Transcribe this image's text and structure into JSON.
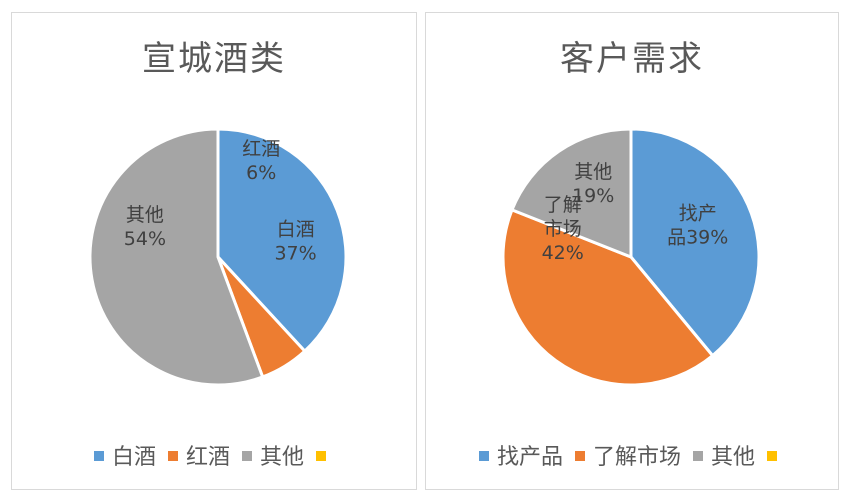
{
  "chart_data": [
    {
      "type": "pie",
      "title": "宣城酒类",
      "slices": [
        {
          "name": "白酒",
          "value": 37,
          "label": [
            "白酒",
            "37%"
          ],
          "color": "#5b9bd5"
        },
        {
          "name": "红酒",
          "value": 6,
          "label": [
            "红酒",
            "6%"
          ],
          "color": "#ed7d31"
        },
        {
          "name": "其他",
          "value": 54,
          "label": [
            "其他",
            "54%"
          ],
          "color": "#a5a5a5"
        }
      ],
      "legend": [
        {
          "name": "白酒",
          "color": "#5b9bd5"
        },
        {
          "name": "红酒",
          "color": "#ed7d31"
        },
        {
          "name": "其他",
          "color": "#a5a5a5"
        },
        {
          "name": "",
          "color": "#ffc000"
        }
      ]
    },
    {
      "type": "pie",
      "title": "客户需求",
      "slices": [
        {
          "name": "找产品",
          "value": 39,
          "label": [
            "找产",
            "品39%"
          ],
          "color": "#5b9bd5"
        },
        {
          "name": "了解市场",
          "value": 42,
          "label": [
            "了解",
            "市场",
            "42%"
          ],
          "color": "#ed7d31"
        },
        {
          "name": "其他",
          "value": 19,
          "label": [
            "其他",
            "19%"
          ],
          "color": "#a5a5a5"
        }
      ],
      "legend": [
        {
          "name": "找产品",
          "color": "#5b9bd5"
        },
        {
          "name": "了解市场",
          "color": "#ed7d31"
        },
        {
          "name": "其他",
          "color": "#a5a5a5"
        },
        {
          "name": "",
          "color": "#ffc000"
        }
      ]
    }
  ]
}
